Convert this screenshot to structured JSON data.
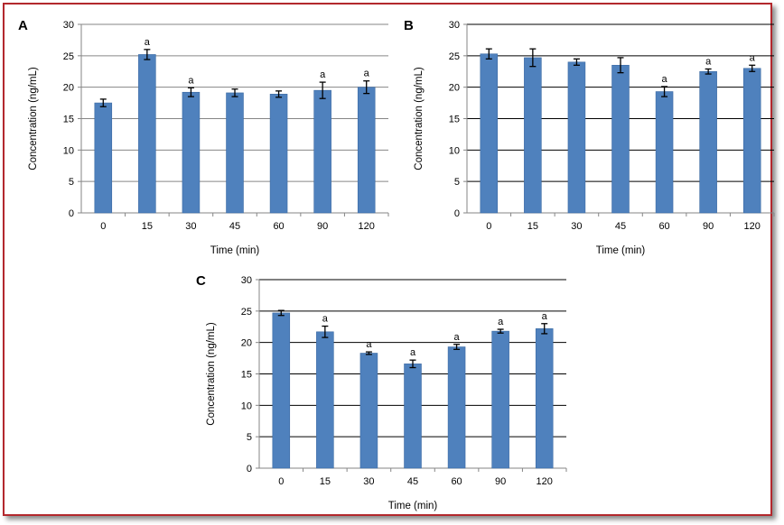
{
  "figure": {
    "border_color": "#b3282d",
    "bar_color": "#4f81bd",
    "bar_edge_color": "#3b6aa3"
  },
  "chart_data": [
    {
      "type": "bar",
      "panel": "A",
      "categories": [
        "0",
        "15",
        "30",
        "45",
        "60",
        "90",
        "120"
      ],
      "values": [
        17.5,
        25.2,
        19.2,
        19.1,
        18.9,
        19.5,
        20.0
      ],
      "errors": [
        0.6,
        0.8,
        0.7,
        0.6,
        0.5,
        1.3,
        1.0
      ],
      "annotations": [
        "",
        "a",
        "a",
        "",
        "",
        "a",
        "a"
      ],
      "xlabel": "Time (min)",
      "ylabel": "Concentration (ng/mL)",
      "ylim": [
        0,
        30
      ],
      "yticks": [
        0,
        5,
        10,
        15,
        20,
        25,
        30
      ],
      "grid": true,
      "gridline_color": "#868686"
    },
    {
      "type": "bar",
      "panel": "B",
      "categories": [
        "0",
        "15",
        "30",
        "45",
        "60",
        "90",
        "120"
      ],
      "values": [
        25.3,
        24.7,
        24.0,
        23.5,
        19.3,
        22.5,
        23.0
      ],
      "errors": [
        0.8,
        1.4,
        0.5,
        1.2,
        0.8,
        0.4,
        0.5
      ],
      "annotations": [
        "",
        "",
        "",
        "",
        "a",
        "a",
        "a"
      ],
      "xlabel": "Time (min)",
      "ylabel": "Concentration (ng/mL)",
      "ylim": [
        0,
        30
      ],
      "yticks": [
        0,
        5,
        10,
        15,
        20,
        25,
        30
      ],
      "grid": true,
      "gridline_color": "#000000"
    },
    {
      "type": "bar",
      "panel": "C",
      "categories": [
        "0",
        "15",
        "30",
        "45",
        "60",
        "90",
        "120"
      ],
      "values": [
        24.7,
        21.7,
        18.3,
        16.6,
        19.3,
        21.8,
        22.2
      ],
      "errors": [
        0.4,
        0.9,
        0.2,
        0.6,
        0.4,
        0.3,
        0.8
      ],
      "annotations": [
        "",
        "a",
        "a",
        "a",
        "a",
        "a",
        "a"
      ],
      "xlabel": "Time (min)",
      "ylabel": "Concentration (ng/mL)",
      "ylim": [
        0,
        30
      ],
      "yticks": [
        0,
        5,
        10,
        15,
        20,
        25,
        30
      ],
      "grid": true,
      "gridline_color": "#000000"
    }
  ]
}
